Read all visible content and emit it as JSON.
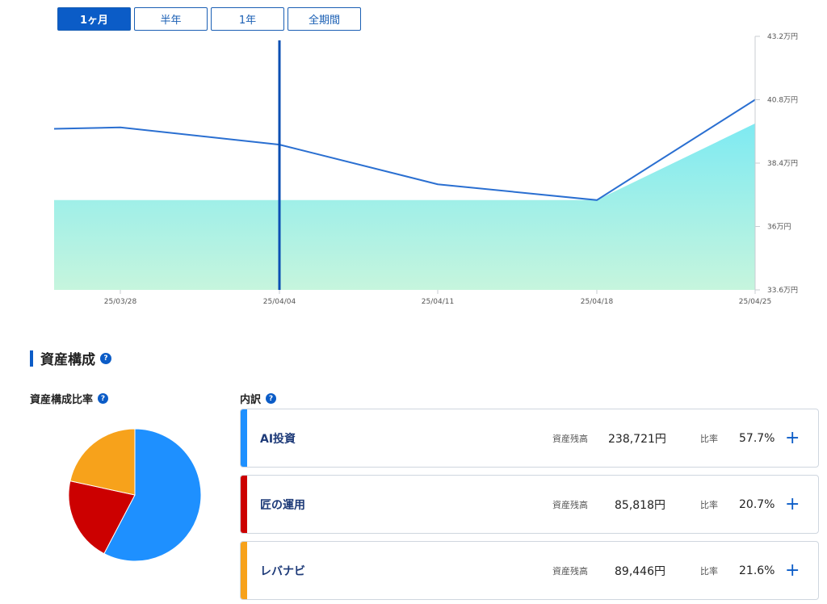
{
  "period_tabs": [
    {
      "label": "1ヶ月",
      "active": true
    },
    {
      "label": "半年",
      "active": false
    },
    {
      "label": "1年",
      "active": false
    },
    {
      "label": "全期間",
      "active": false
    }
  ],
  "chart_data": {
    "type": "line",
    "x": [
      "25/03/24",
      "25/03/28",
      "25/04/04",
      "25/04/11",
      "25/04/18",
      "25/04/25"
    ],
    "x_tick_labels": [
      "25/03/28",
      "25/04/04",
      "25/04/11",
      "25/04/18",
      "25/04/25"
    ],
    "series": [
      {
        "type": "line",
        "values": [
          39.7,
          39.75,
          39.1,
          37.6,
          37.0,
          40.8
        ],
        "color": "#2a6fd1"
      },
      {
        "type": "area",
        "values": [
          37.0,
          37.0,
          37.0,
          37.0,
          37.0,
          39.9
        ],
        "color": "#7ee8ee"
      }
    ],
    "ylim": [
      33.6,
      43.2
    ],
    "y_tick_labels": [
      "43.2万円",
      "40.8万円",
      "38.4万円",
      "36万円",
      "33.6万円"
    ],
    "y_tick_values": [
      43.2,
      40.8,
      38.4,
      36.0,
      33.6
    ],
    "cursor_x": "25/04/04",
    "cursor_color": "#0b4fb3",
    "grid": false
  },
  "section": {
    "title": "資産構成",
    "help": "?"
  },
  "composition": {
    "title": "資産構成比率",
    "help": "?"
  },
  "breakdown": {
    "title": "内訳",
    "help": "?",
    "balance_label": "資産残高",
    "ratio_label": "比率",
    "items": [
      {
        "name": "AI投資",
        "balance": "238,721円",
        "ratio": "57.7%",
        "percent": 57.7,
        "color": "#1e90ff",
        "plus": "+"
      },
      {
        "name": "匠の運用",
        "balance": "85,818円",
        "ratio": "20.7%",
        "percent": 20.7,
        "color": "#cc0000",
        "plus": "+"
      },
      {
        "name": "レバナビ",
        "balance": "89,446円",
        "ratio": "21.6%",
        "percent": 21.6,
        "color": "#f7a21b",
        "plus": "+"
      }
    ]
  }
}
